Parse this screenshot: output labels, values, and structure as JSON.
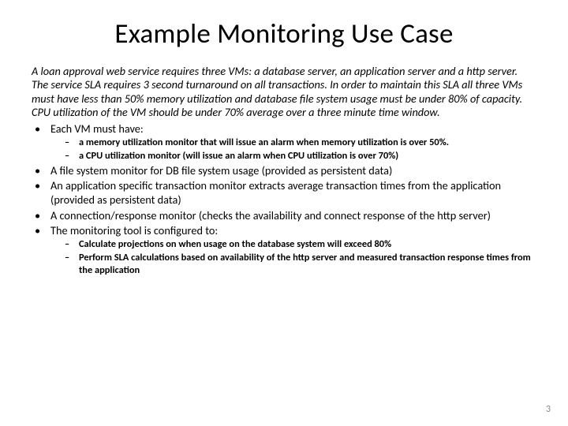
{
  "title": "Example Monitoring Use Case",
  "intro": "A  loan approval web service requires three VMs:  a database server, an application server and a http server.  The service SLA requires 3 second turnaround on all transactions.  In order to maintain this SLA all three VMs must have less than 50% memory utilization and database file system usage must be under 80% of capacity.  CPU utilization of the VM should be under 70% average over a three minute time window.",
  "b1": "Each VM must have:",
  "b1s1": "a memory utilization monitor that will issue an alarm when memory utilization is over 50%.",
  "b1s2": "a CPU utilization monitor (will issue an alarm when CPU utilization is over 70%)",
  "b2": "A file system monitor for DB file system usage (provided as persistent data)",
  "b3": "An application specific transaction monitor extracts average transaction times from the application (provided as persistent data)",
  "b4": "A connection/response monitor (checks the availability and connect response of the http server)",
  "b5": "The monitoring tool is configured to:",
  "b5s1": "Calculate projections on when usage on the database system will exceed 80%",
  "b5s2": "Perform SLA calculations based on availability of the http server and measured transaction response times from the application",
  "pagenum": "3"
}
